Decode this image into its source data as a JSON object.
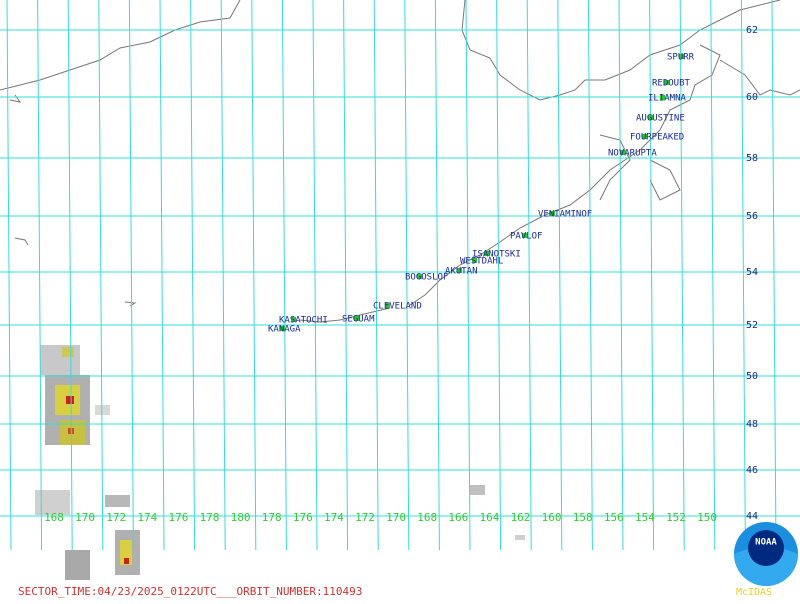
{
  "map": {
    "latitude_labels": [
      "62",
      "60",
      "58",
      "56",
      "54",
      "52",
      "50",
      "48",
      "46",
      "44"
    ],
    "longitude_labels": [
      "168",
      "170",
      "172",
      "174",
      "176",
      "178",
      "180",
      "178",
      "176",
      "174",
      "172",
      "170",
      "168",
      "166",
      "164",
      "162",
      "160",
      "158",
      "156",
      "154",
      "152",
      "150"
    ],
    "volcanoes": [
      "SPURR",
      "REDOUBT",
      "ILIAMNA",
      "AUGUSTINE",
      "FOURPEAKED",
      "NOVARUPTA",
      "VENIAMINOF",
      "PAVLOF",
      "ISANOTSKI",
      "WESTDAHL",
      "AKUTAN",
      "BOGOSLOF",
      "CLEVELAND",
      "KASATOCHI",
      "SEGUAM",
      "KANAGA"
    ],
    "footer": "SECTOR_TIME:04/23/2025_0122UTC___ORBIT_NUMBER:110493",
    "logo": "NOAA",
    "software": "McIDAS"
  }
}
